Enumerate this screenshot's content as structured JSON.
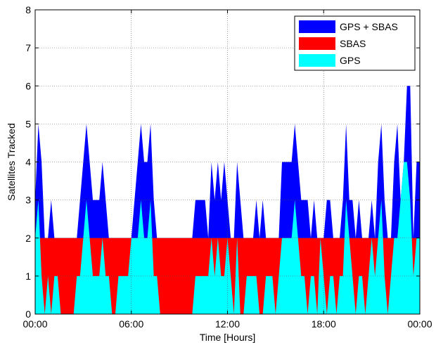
{
  "chart_data": {
    "type": "area",
    "xlabel": "Time [Hours]",
    "ylabel": "Satellites Tracked",
    "xlim": [
      0,
      24
    ],
    "ylim": [
      0,
      8
    ],
    "xticks": [
      0,
      6,
      12,
      18,
      24
    ],
    "xtick_labels": [
      "00:00",
      "06:00",
      "12:00",
      "18:00",
      "00:00"
    ],
    "yticks": [
      0,
      1,
      2,
      3,
      4,
      5,
      6,
      7,
      8
    ],
    "grid": true,
    "legend_position": "top-right",
    "x": [
      0.0,
      0.2,
      0.4,
      0.6,
      0.8,
      1.0,
      1.2,
      1.4,
      1.6,
      1.8,
      2.0,
      2.2,
      2.4,
      2.6,
      2.8,
      3.0,
      3.2,
      3.4,
      3.6,
      3.8,
      4.0,
      4.2,
      4.4,
      4.6,
      4.8,
      5.0,
      5.2,
      5.4,
      5.6,
      5.8,
      6.0,
      6.2,
      6.4,
      6.6,
      6.8,
      7.0,
      7.2,
      7.4,
      7.6,
      7.8,
      8.0,
      8.2,
      8.4,
      8.6,
      8.8,
      9.0,
      9.2,
      9.4,
      9.6,
      9.8,
      10.0,
      10.2,
      10.4,
      10.6,
      10.8,
      11.0,
      11.2,
      11.4,
      11.6,
      11.8,
      12.0,
      12.2,
      12.4,
      12.6,
      12.8,
      13.0,
      13.2,
      13.4,
      13.6,
      13.8,
      14.0,
      14.2,
      14.4,
      14.6,
      14.8,
      15.0,
      15.2,
      15.4,
      15.6,
      15.8,
      16.0,
      16.2,
      16.4,
      16.6,
      16.8,
      17.0,
      17.2,
      17.4,
      17.6,
      17.8,
      18.0,
      18.2,
      18.4,
      18.6,
      18.8,
      19.0,
      19.2,
      19.4,
      19.6,
      19.8,
      20.0,
      20.2,
      20.4,
      20.6,
      20.8,
      21.0,
      21.2,
      21.4,
      21.6,
      21.8,
      22.0,
      22.2,
      22.4,
      22.6,
      22.8,
      23.0,
      23.2,
      23.4,
      23.6,
      23.8,
      24.0
    ],
    "series": [
      {
        "name": "GPS + SBAS",
        "color": "#0000ff",
        "values": [
          3,
          5,
          4,
          2,
          2,
          3,
          2,
          2,
          2,
          2,
          2,
          2,
          2,
          2,
          3,
          4,
          5,
          4,
          3,
          3,
          3,
          4,
          3,
          2,
          2,
          2,
          2,
          2,
          2,
          2,
          2,
          3,
          4,
          5,
          4,
          4,
          5,
          3,
          2,
          2,
          2,
          2,
          2,
          2,
          2,
          2,
          2,
          2,
          2,
          2,
          3,
          3,
          3,
          3,
          2,
          4,
          3,
          4,
          3,
          4,
          3,
          2,
          2,
          4,
          3,
          2,
          2,
          2,
          2,
          3,
          2,
          3,
          2,
          2,
          2,
          2,
          2,
          4,
          4,
          4,
          4,
          5,
          4,
          3,
          3,
          3,
          2,
          3,
          2,
          2,
          2,
          3,
          3,
          2,
          2,
          2,
          3,
          5,
          3,
          3,
          2,
          3,
          2,
          2,
          2,
          3,
          2,
          4,
          5,
          3,
          2,
          2,
          4,
          5,
          3,
          4,
          6,
          6,
          2,
          4,
          4
        ]
      },
      {
        "name": "SBAS",
        "color": "#ff0000",
        "values": [
          2,
          2,
          2,
          2,
          2,
          2,
          2,
          2,
          2,
          2,
          2,
          2,
          2,
          2,
          2,
          2,
          2,
          2,
          2,
          2,
          2,
          2,
          2,
          2,
          2,
          2,
          2,
          2,
          2,
          2,
          2,
          2,
          2,
          2,
          2,
          2,
          2,
          2,
          2,
          2,
          2,
          2,
          2,
          2,
          2,
          2,
          2,
          2,
          2,
          2,
          2,
          2,
          2,
          2,
          2,
          2,
          2,
          2,
          2,
          2,
          2,
          2,
          2,
          2,
          2,
          2,
          2,
          2,
          2,
          2,
          2,
          2,
          2,
          2,
          2,
          2,
          2,
          2,
          2,
          2,
          2,
          2,
          2,
          2,
          2,
          2,
          2,
          2,
          2,
          2,
          2,
          2,
          2,
          2,
          2,
          2,
          2,
          2,
          2,
          2,
          2,
          2,
          2,
          2,
          2,
          2,
          2,
          2,
          2,
          2,
          2,
          2,
          2,
          2,
          2,
          2,
          2,
          2,
          2,
          2,
          2
        ]
      },
      {
        "name": "GPS",
        "color": "#00ffff",
        "values": [
          2,
          3,
          1,
          0,
          1,
          0,
          1,
          1,
          0,
          0,
          0,
          0,
          0,
          1,
          1,
          2,
          3,
          2,
          1,
          1,
          1,
          2,
          1,
          1,
          0,
          0,
          1,
          1,
          1,
          1,
          2,
          2,
          2,
          3,
          2,
          2,
          3,
          1,
          1,
          0,
          0,
          0,
          0,
          0,
          0,
          0,
          0,
          0,
          0,
          0,
          1,
          1,
          1,
          1,
          1,
          2,
          1,
          2,
          1,
          1,
          2,
          1,
          0,
          2,
          0,
          0,
          1,
          1,
          1,
          1,
          0,
          0,
          1,
          1,
          1,
          0,
          1,
          2,
          2,
          2,
          2,
          3,
          2,
          1,
          1,
          0,
          1,
          1,
          0,
          2,
          1,
          0,
          1,
          1,
          0,
          1,
          1,
          3,
          2,
          1,
          0,
          1,
          1,
          0,
          1,
          2,
          1,
          2,
          3,
          1,
          0,
          1,
          2,
          2,
          3,
          4,
          4,
          3,
          1,
          2,
          2
        ]
      }
    ]
  }
}
